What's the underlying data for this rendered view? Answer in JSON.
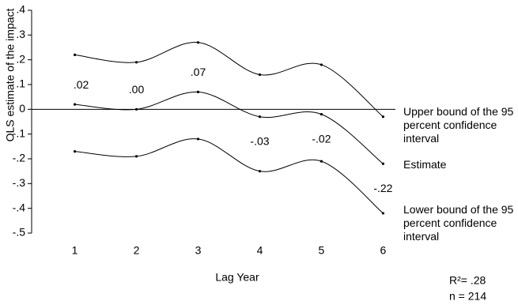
{
  "chart_data": {
    "type": "line",
    "y_label": "OLS estimate of the impact",
    "x_label": "Lag Year",
    "x": [
      1,
      2,
      3,
      4,
      5,
      6
    ],
    "xlim": [
      0.3,
      6.2
    ],
    "xticks": [
      1,
      2,
      3,
      4,
      5,
      6
    ],
    "ylim": [
      -0.5,
      0.4
    ],
    "yticks": [
      {
        "value": 0.4,
        "label": ".4"
      },
      {
        "value": 0.3,
        "label": ".3"
      },
      {
        "value": 0.2,
        "label": ".2"
      },
      {
        "value": 0.1,
        "label": ".1"
      },
      0,
      {
        "value": -0.1,
        "label": "-.1"
      },
      {
        "value": -0.2,
        "label": "-.2"
      },
      {
        "value": -0.3,
        "label": "-.3"
      },
      {
        "value": -0.4,
        "label": "-.4"
      },
      {
        "value": -0.5,
        "label": "-.5"
      }
    ],
    "series": [
      {
        "name": "Upper bound of the 95 percent confidence interval",
        "color": "#000000",
        "values": [
          0.22,
          0.19,
          0.27,
          0.14,
          0.18,
          -0.03
        ]
      },
      {
        "name": "Estimate",
        "color": "#000000",
        "values": [
          0.02,
          0,
          0.07,
          -0.03,
          -0.02,
          -0.22
        ],
        "value_labels": [
          ".02",
          ".00",
          ".07",
          "-.03",
          "-.02",
          "-.22"
        ]
      },
      {
        "name": "Lower bound of the 95 percent confidence interval",
        "color": "#000000",
        "values": [
          -0.17,
          -0.19,
          -0.12,
          -0.25,
          -0.21,
          -0.42
        ]
      }
    ],
    "annotations": [
      "R²= .28",
      "n = 214"
    ]
  }
}
